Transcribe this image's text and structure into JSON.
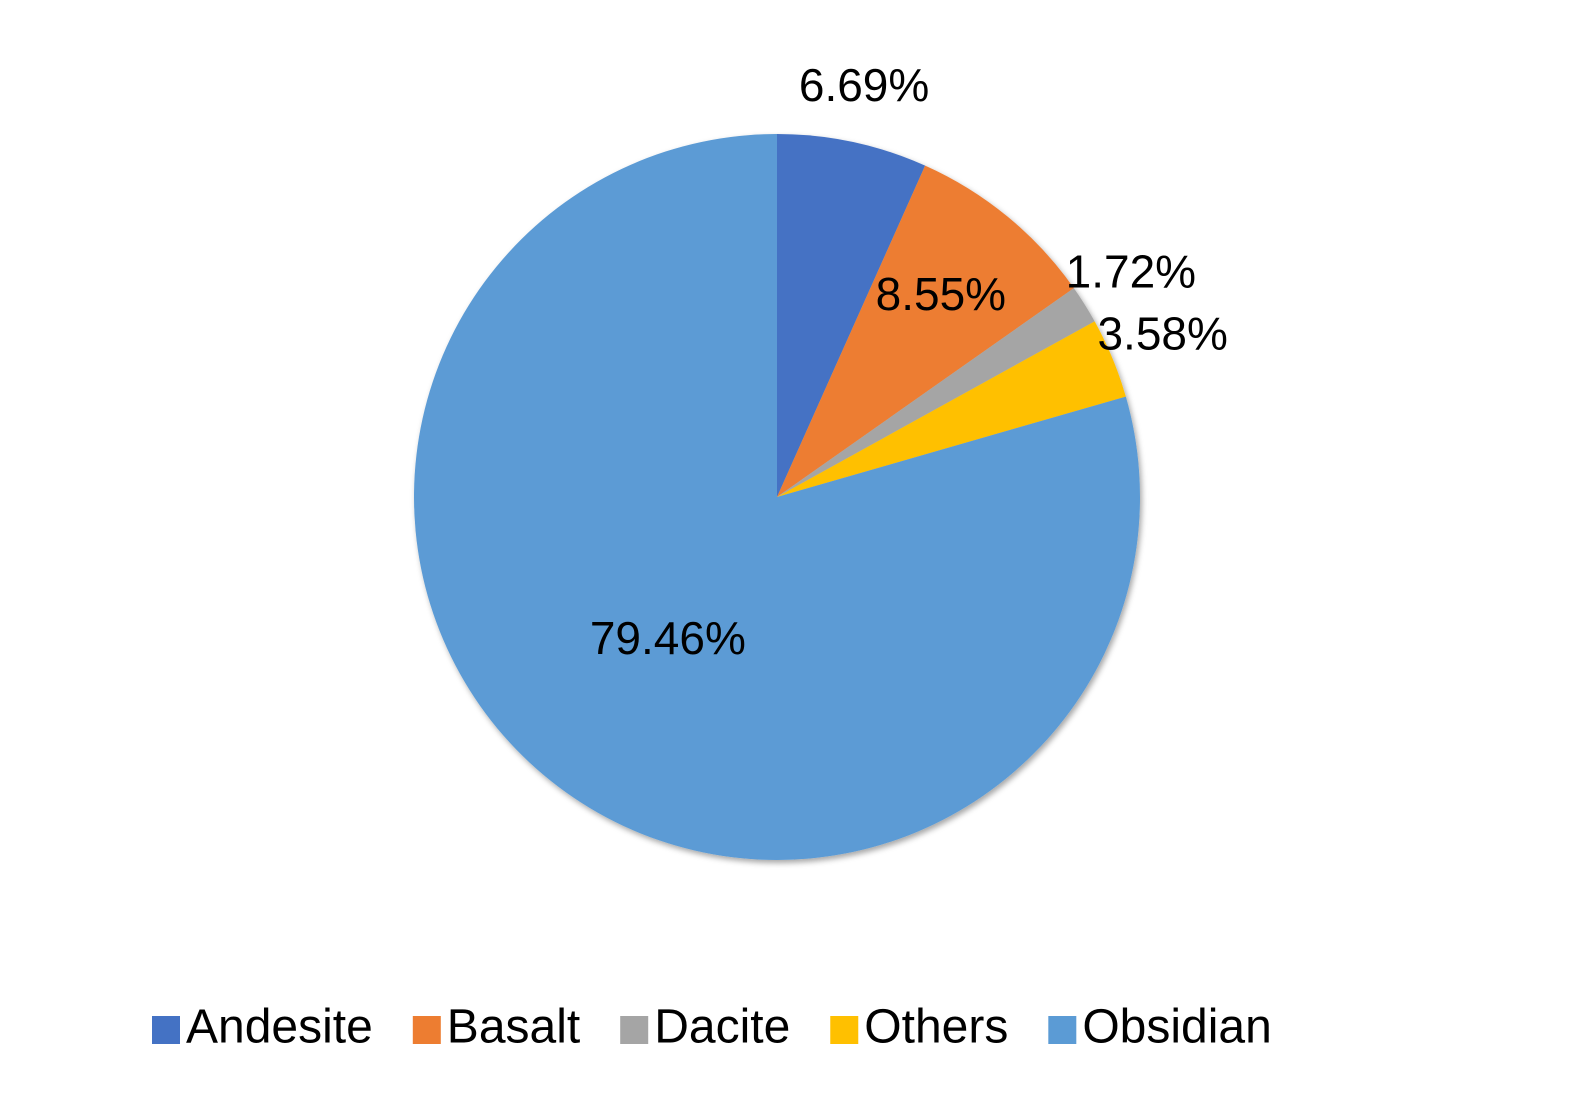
{
  "chart_data": {
    "type": "pie",
    "categories": [
      "Andesite",
      "Basalt",
      "Dacite",
      "Others",
      "Obsidian"
    ],
    "values": [
      6.69,
      8.55,
      1.72,
      3.58,
      79.46
    ],
    "value_labels": [
      "6.69%",
      "8.55%",
      "1.72%",
      "3.58%",
      "79.46%"
    ],
    "colors": [
      "#4472c4",
      "#ed7d31",
      "#a5a5a5",
      "#ffc000",
      "#5b9bd5"
    ],
    "legend": "bottom"
  }
}
